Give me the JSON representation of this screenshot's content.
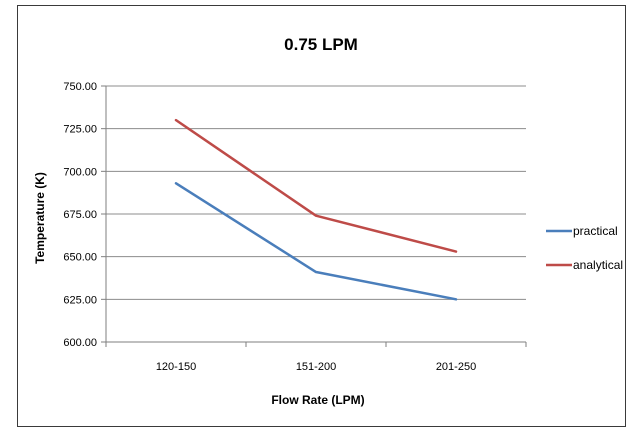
{
  "chart_data": {
    "type": "line",
    "title": "0.75 LPM",
    "xlabel": "Flow Rate (LPM)",
    "ylabel": "Temperature (K)",
    "categories": [
      "120-150",
      "151-200",
      "201-250"
    ],
    "ylim": [
      600,
      750
    ],
    "yticks": [
      "600.00",
      "625.00",
      "650.00",
      "675.00",
      "700.00",
      "725.00",
      "750.00"
    ],
    "grid": true,
    "legend": "right",
    "series": [
      {
        "name": "practical",
        "values": [
          693,
          641,
          625
        ],
        "color": "#4a7ebb"
      },
      {
        "name": "analytical",
        "values": [
          730,
          674,
          653
        ],
        "color": "#be4b48"
      }
    ]
  }
}
